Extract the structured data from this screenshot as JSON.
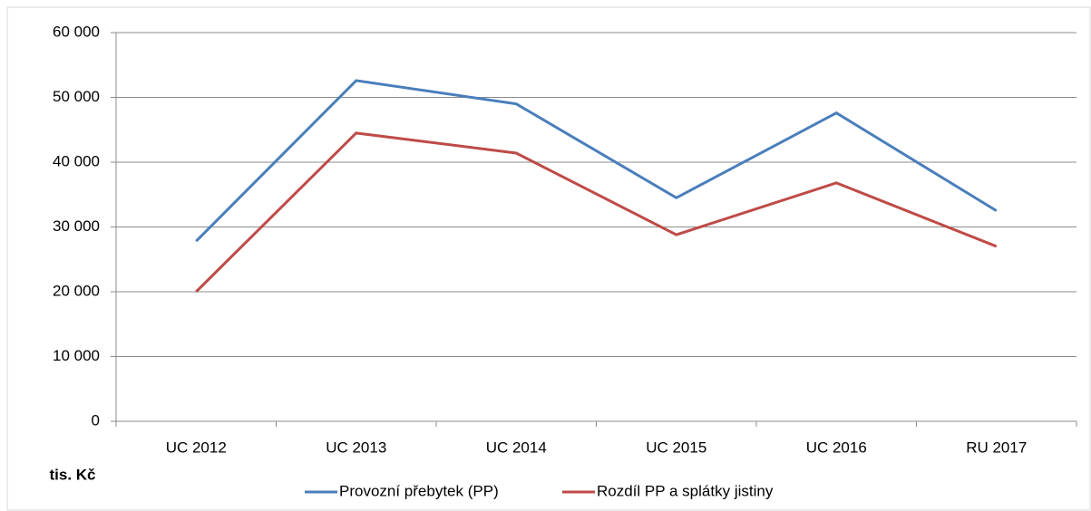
{
  "chart_data": {
    "type": "line",
    "categories": [
      "UC 2012",
      "UC 2013",
      "UC 2014",
      "UC 2015",
      "UC 2016",
      "RU 2017"
    ],
    "series": [
      {
        "name": "Provozní přebytek (PP)",
        "color": "#4a7ebb",
        "values": [
          27800,
          52600,
          49000,
          34500,
          47600,
          32500
        ]
      },
      {
        "name": "Rozdíl PP a splátky jistiny",
        "color": "#be4b48",
        "values": [
          20000,
          44500,
          41400,
          28800,
          36800,
          27000
        ]
      }
    ],
    "ylim": [
      0,
      60000
    ],
    "yticks": [
      0,
      {
        "value": 10000,
        "label": "10 000"
      },
      {
        "value": 20000,
        "label": "20 000"
      },
      {
        "value": 30000,
        "label": "30 000"
      },
      {
        "value": 40000,
        "label": "40 000"
      },
      {
        "value": 50000,
        "label": "50 000"
      },
      {
        "value": 60000,
        "label": "60 000"
      }
    ],
    "y_axis_label": "tis. Kč",
    "grid": true
  }
}
